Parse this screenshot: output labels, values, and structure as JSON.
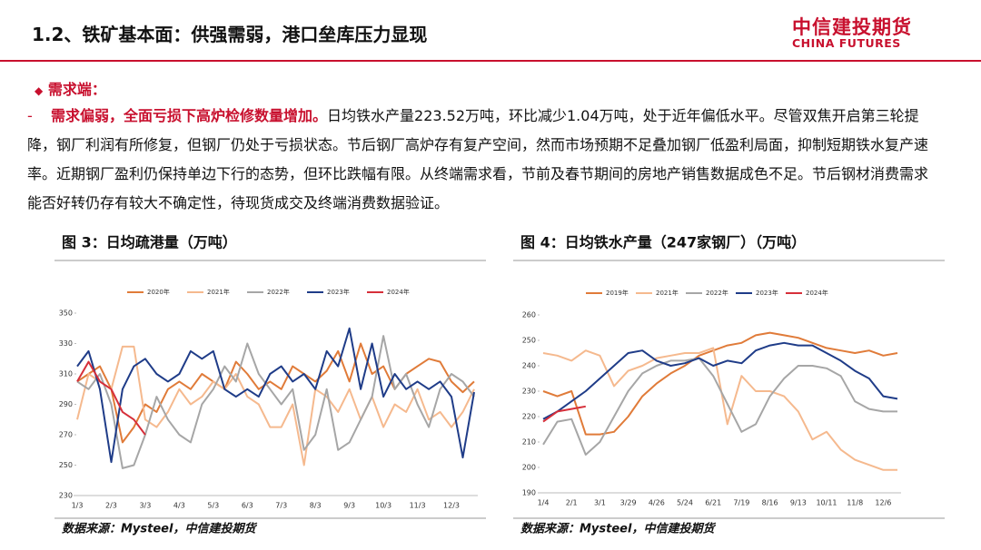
{
  "header": {
    "title": "1.2、铁矿基本面：供强需弱，港口垒库压力显现",
    "logo": "中信建投期货",
    "logo_en": "CHINA FUTURES"
  },
  "section": "需求端：",
  "paragraph": {
    "lead": "需求偏弱，全面亏损下高炉检修数量增加。",
    "text": "日均铁水产量223.52万吨，环比减少1.04万吨，处于近年偏低水平。尽管双焦开启第三轮提降，钢厂利润有所修复，但钢厂仍处于亏损状态。节后钢厂高炉存有复产空间，然而市场预期不足叠加钢厂低盈利局面，抑制短期铁水复产速率。近期钢厂盈利仍保持单边下行的态势，但环比跌幅有限。从终端需求看，节前及春节期间的房地产销售数据成色不足。节后钢材消费需求能否好转仍存有较大不确定性，待现货成交及终端消费数据验证。"
  },
  "chart_data": [
    {
      "type": "line",
      "title": "图 3：日均疏港量（万吨）",
      "source": "数据来源：Mysteel，中信建投期货",
      "categories": [
        "1/3",
        null,
        null,
        "2/3",
        null,
        null,
        "3/3",
        null,
        null,
        "4/3",
        null,
        null,
        "5/3",
        null,
        null,
        "6/3",
        null,
        null,
        "7/3",
        null,
        null,
        "8/3",
        null,
        null,
        "9/3",
        null,
        null,
        "10/3",
        null,
        null,
        "11/3",
        null,
        null,
        "12/3",
        null,
        null
      ],
      "ylim": [
        230,
        350
      ],
      "yticks": [
        230,
        250,
        270,
        290,
        310,
        330,
        350
      ],
      "series": [
        {
          "name": "2020年",
          "color": "#e07b39",
          "values": [
            305,
            310,
            315,
            300,
            265,
            275,
            290,
            285,
            300,
            305,
            300,
            310,
            305,
            300,
            318,
            310,
            300,
            305,
            300,
            315,
            310,
            305,
            312,
            325,
            305,
            330,
            310,
            315,
            300,
            310,
            315,
            320,
            318,
            305,
            298,
            305
          ]
        },
        {
          "name": "2021年",
          "color": "#f5b98e",
          "values": [
            280,
            310,
            305,
            300,
            328,
            328,
            280,
            275,
            285,
            300,
            290,
            295,
            305,
            300,
            310,
            295,
            290,
            275,
            275,
            290,
            250,
            300,
            295,
            285,
            300,
            280,
            295,
            275,
            290,
            285,
            300,
            280,
            285,
            275,
            285,
            300
          ]
        },
        {
          "name": "2022年",
          "color": "#a6a6a6",
          "values": [
            305,
            300,
            310,
            290,
            248,
            250,
            270,
            295,
            280,
            270,
            265,
            290,
            300,
            315,
            305,
            330,
            310,
            300,
            290,
            300,
            260,
            270,
            300,
            260,
            265,
            280,
            295,
            335,
            300,
            310,
            290,
            275,
            300,
            310,
            305,
            295
          ]
        },
        {
          "name": "2023年",
          "color": "#1f3c88",
          "values": [
            315,
            325,
            300,
            252,
            300,
            315,
            320,
            310,
            305,
            310,
            325,
            320,
            325,
            300,
            295,
            300,
            295,
            310,
            315,
            305,
            310,
            300,
            325,
            315,
            340,
            300,
            330,
            295,
            310,
            300,
            305,
            300,
            305,
            295,
            255,
            298
          ]
        },
        {
          "name": "2024年",
          "color": "#d62f3a",
          "values": [
            305,
            318,
            305,
            300,
            285,
            280,
            270,
            null,
            null,
            null,
            null,
            null,
            null,
            null,
            null,
            null,
            null,
            null,
            null,
            null,
            null,
            null,
            null,
            null,
            null,
            null,
            null,
            null,
            null,
            null,
            null,
            null,
            null,
            null,
            null,
            null
          ]
        }
      ]
    },
    {
      "type": "line",
      "title": "图 4：日均铁水产量（247家钢厂）（万吨）",
      "source": "数据来源：Mysteel，中信建投期货",
      "categories": [
        "1/4",
        null,
        "2/1",
        null,
        "3/1",
        null,
        "3/29",
        null,
        "4/26",
        null,
        "5/24",
        null,
        "6/21",
        null,
        "7/19",
        null,
        "8/16",
        null,
        "9/13",
        null,
        "10/11",
        null,
        "11/8",
        null,
        "12/6",
        null
      ],
      "ylim": [
        190,
        260
      ],
      "yticks": [
        190,
        200,
        210,
        220,
        230,
        240,
        250,
        260
      ],
      "series": [
        {
          "name": "2019年",
          "color": "#e07b39",
          "values": [
            230,
            228,
            230,
            213,
            213,
            214,
            220,
            228,
            233,
            237,
            240,
            244,
            246,
            248,
            249,
            252,
            253,
            252,
            251,
            249,
            247,
            246,
            245,
            246,
            244,
            245
          ]
        },
        {
          "name": "2021年",
          "color": "#f5b98e",
          "values": [
            245,
            244,
            242,
            246,
            244,
            232,
            238,
            240,
            243,
            244,
            245,
            245,
            247,
            217,
            236,
            230,
            230,
            228,
            222,
            211,
            214,
            207,
            203,
            201,
            199,
            199
          ]
        },
        {
          "name": "2022年",
          "color": "#a6a6a6",
          "values": [
            209,
            218,
            219,
            205,
            210,
            220,
            230,
            237,
            240,
            242,
            242,
            243,
            236,
            225,
            214,
            217,
            228,
            235,
            240,
            240,
            239,
            236,
            226,
            223,
            222,
            222
          ]
        },
        {
          "name": "2023年",
          "color": "#1f3c88",
          "values": [
            219,
            222,
            226,
            230,
            235,
            240,
            245,
            246,
            242,
            240,
            241,
            243,
            240,
            242,
            241,
            246,
            248,
            249,
            248,
            248,
            245,
            242,
            238,
            235,
            228,
            227
          ]
        },
        {
          "name": "2024年",
          "color": "#d62f3a",
          "values": [
            218,
            222,
            223,
            224,
            null,
            null,
            null,
            null,
            null,
            null,
            null,
            null,
            null,
            null,
            null,
            null,
            null,
            null,
            null,
            null,
            null,
            null,
            null,
            null,
            null,
            null
          ]
        }
      ]
    }
  ]
}
